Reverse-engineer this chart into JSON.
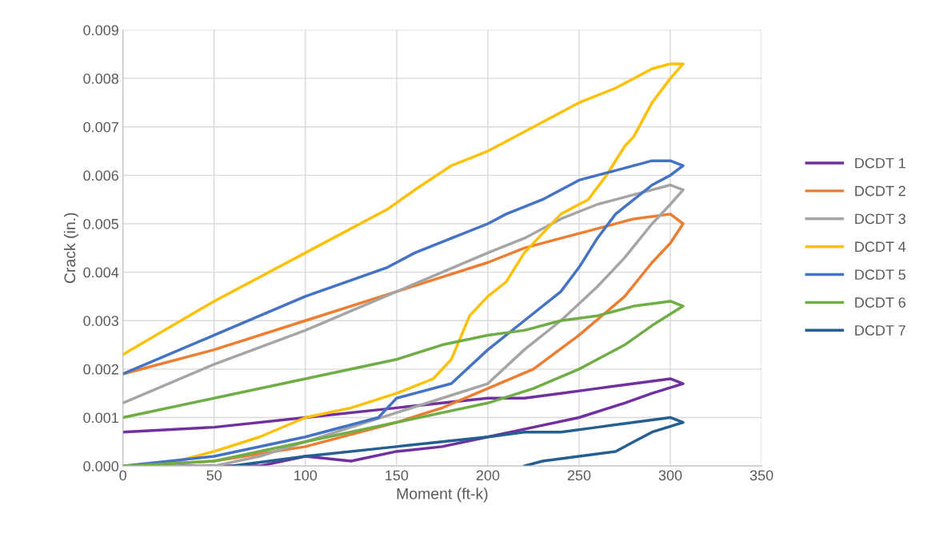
{
  "chart_data": {
    "type": "line",
    "xlabel": "Moment (ft-k)",
    "ylabel": "Crack (in.)",
    "xlim": [
      0,
      350
    ],
    "xticks": [
      0,
      50,
      100,
      150,
      200,
      250,
      300,
      350
    ],
    "ylim": [
      0,
      0.009
    ],
    "yticks": [
      {
        "value": 0,
        "label": "0.000"
      },
      {
        "value": 0.001,
        "label": "0.001"
      },
      {
        "value": 0.002,
        "label": "0.002"
      },
      {
        "value": 0.003,
        "label": "0.003"
      },
      {
        "value": 0.004,
        "label": "0.004"
      },
      {
        "value": 0.005,
        "label": "0.005"
      },
      {
        "value": 0.006,
        "label": "0.006"
      },
      {
        "value": 0.007,
        "label": "0.007"
      },
      {
        "value": 0.008,
        "label": "0.008"
      },
      {
        "value": 0.009,
        "label": "0.009"
      }
    ],
    "grid": true,
    "legend": "right",
    "marker": "none",
    "line_style": "solid",
    "series": [
      {
        "name": "DCDT 1",
        "color": "#7030a0",
        "x": [
          0,
          50,
          75,
          100,
          125,
          150,
          175,
          200,
          225,
          250,
          275,
          290,
          307,
          300,
          280,
          260,
          240,
          220,
          200,
          175,
          150,
          100,
          50,
          0
        ],
        "values": [
          0,
          0,
          0,
          0.0002,
          0.0001,
          0.0003,
          0.0004,
          0.0006,
          0.0008,
          0.001,
          0.0013,
          0.0015,
          0.0017,
          0.0018,
          0.0017,
          0.0016,
          0.0015,
          0.0014,
          0.0014,
          0.0013,
          0.0012,
          0.001,
          0.0008,
          0.0007
        ]
      },
      {
        "name": "DCDT 2",
        "color": "#ed7d31",
        "x": [
          0,
          50,
          100,
          150,
          175,
          200,
          225,
          250,
          275,
          290,
          300,
          307,
          300,
          280,
          260,
          240,
          220,
          200,
          175,
          150,
          100,
          50,
          0
        ],
        "values": [
          0,
          0.0001,
          0.0004,
          0.0009,
          0.0012,
          0.0016,
          0.002,
          0.0027,
          0.0035,
          0.0042,
          0.0046,
          0.005,
          0.0052,
          0.0051,
          0.0049,
          0.0047,
          0.0045,
          0.0042,
          0.0039,
          0.0036,
          0.003,
          0.0024,
          0.0019
        ]
      },
      {
        "name": "DCDT 3",
        "color": "#a5a5a5",
        "x": [
          0,
          50,
          75,
          100,
          125,
          150,
          175,
          200,
          220,
          240,
          260,
          275,
          290,
          300,
          307,
          300,
          280,
          260,
          240,
          220,
          200,
          175,
          150,
          100,
          50,
          0
        ],
        "values": [
          0,
          0,
          0.0002,
          0.0005,
          0.0008,
          0.0011,
          0.0014,
          0.0017,
          0.0024,
          0.003,
          0.0037,
          0.0043,
          0.005,
          0.0054,
          0.0057,
          0.0058,
          0.0056,
          0.0054,
          0.0051,
          0.0047,
          0.0044,
          0.004,
          0.0036,
          0.0028,
          0.0021,
          0.0013
        ]
      },
      {
        "name": "DCDT 4",
        "color": "#ffc000",
        "x": [
          0,
          30,
          50,
          75,
          100,
          125,
          150,
          170,
          180,
          190,
          200,
          210,
          220,
          230,
          240,
          255,
          265,
          275,
          280,
          290,
          300,
          307,
          300,
          290,
          270,
          250,
          230,
          210,
          200,
          180,
          160,
          145,
          100,
          50,
          0
        ],
        "values": [
          0,
          0.0001,
          0.0003,
          0.0006,
          0.001,
          0.0012,
          0.0015,
          0.0018,
          0.0022,
          0.0031,
          0.0035,
          0.0038,
          0.0044,
          0.0048,
          0.0052,
          0.0055,
          0.006,
          0.0066,
          0.0068,
          0.0075,
          0.008,
          0.0083,
          0.0083,
          0.0082,
          0.0078,
          0.0075,
          0.0071,
          0.0067,
          0.0065,
          0.0062,
          0.0057,
          0.0053,
          0.0044,
          0.0034,
          0.0023
        ]
      },
      {
        "name": "DCDT 5",
        "color": "#4472c4",
        "x": [
          0,
          50,
          100,
          140,
          150,
          180,
          200,
          220,
          240,
          250,
          260,
          270,
          280,
          290,
          300,
          307,
          300,
          290,
          270,
          250,
          230,
          210,
          200,
          180,
          160,
          145,
          100,
          50,
          0
        ],
        "values": [
          0,
          0.0002,
          0.0006,
          0.001,
          0.0014,
          0.0017,
          0.0024,
          0.003,
          0.0036,
          0.0041,
          0.0047,
          0.0052,
          0.0055,
          0.0058,
          0.006,
          0.0062,
          0.0063,
          0.0063,
          0.0061,
          0.0059,
          0.0055,
          0.0052,
          0.005,
          0.0047,
          0.0044,
          0.0041,
          0.0035,
          0.0027,
          0.0019
        ]
      },
      {
        "name": "DCDT 6",
        "color": "#70ad47",
        "x": [
          0,
          50,
          100,
          150,
          200,
          225,
          250,
          275,
          290,
          307,
          300,
          280,
          260,
          240,
          220,
          200,
          175,
          150,
          100,
          50,
          0
        ],
        "values": [
          0,
          0.0001,
          0.0005,
          0.0009,
          0.0013,
          0.0016,
          0.002,
          0.0025,
          0.0029,
          0.0033,
          0.0034,
          0.0033,
          0.0031,
          0.003,
          0.0028,
          0.0027,
          0.0025,
          0.0022,
          0.0018,
          0.0014,
          0.001
        ]
      },
      {
        "name": "DCDT 7",
        "color": "#255e91",
        "x": [
          220,
          230,
          250,
          270,
          280,
          290,
          307,
          300,
          280,
          260,
          240,
          220,
          200,
          175,
          150,
          100,
          60
        ],
        "values": [
          0,
          0.0001,
          0.0002,
          0.0003,
          0.0005,
          0.0007,
          0.0009,
          0.001,
          0.0009,
          0.0008,
          0.0007,
          0.0007,
          0.0006,
          0.0005,
          0.0004,
          0.0002,
          0
        ]
      }
    ]
  }
}
